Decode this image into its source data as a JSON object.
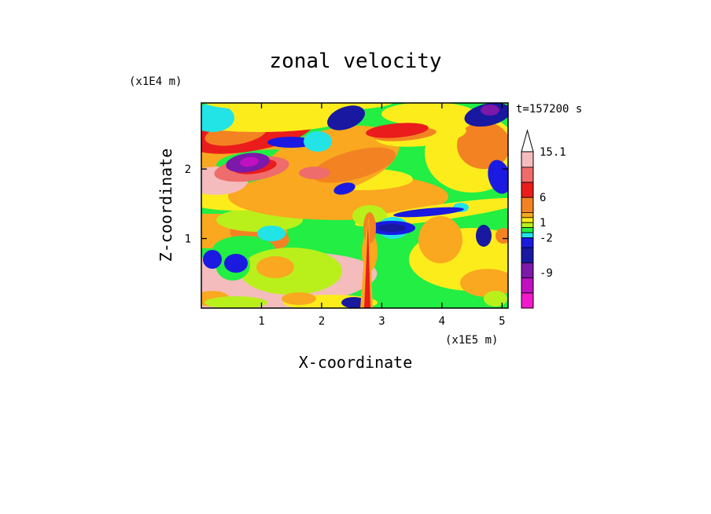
{
  "chart_data": {
    "type": "heatmap",
    "title": "zonal velocity",
    "xlabel": "X-coordinate",
    "ylabel": "Z-coordinate",
    "x_unit": "(x1E5 m)",
    "y_unit": "(x1E4 m)",
    "time_label": "t=157200 s",
    "xlim": [
      0.0,
      5.1
    ],
    "ylim": [
      0.0,
      2.95
    ],
    "x_ticks": [
      "1",
      "2",
      "3",
      "4",
      "5"
    ],
    "y_ticks": [
      "1",
      "2"
    ],
    "colorbar": {
      "labels": [
        "15.1",
        "6",
        "1",
        "-2",
        "-9"
      ],
      "levels": [
        {
          "lower": 12,
          "color": "#f4bcbc"
        },
        {
          "lower": 9,
          "color": "#ee6c6c"
        },
        {
          "lower": 6,
          "color": "#ea1c1c"
        },
        {
          "lower": 3,
          "color": "#f38322"
        },
        {
          "lower": 2,
          "color": "#f9a820"
        },
        {
          "lower": 1,
          "color": "#fcec1c"
        },
        {
          "lower": 0,
          "color": "#b9f01c"
        },
        {
          "lower": -1,
          "color": "#22ee44"
        },
        {
          "lower": -2,
          "color": "#22e4e6"
        },
        {
          "lower": -4,
          "color": "#1a1ae0"
        },
        {
          "lower": -7,
          "color": "#1818a0"
        },
        {
          "lower": -10,
          "color": "#7c18aa"
        },
        {
          "lower": -13,
          "color": "#c010c0"
        },
        {
          "lower": -16,
          "color": "#f01aca"
        }
      ]
    }
  }
}
